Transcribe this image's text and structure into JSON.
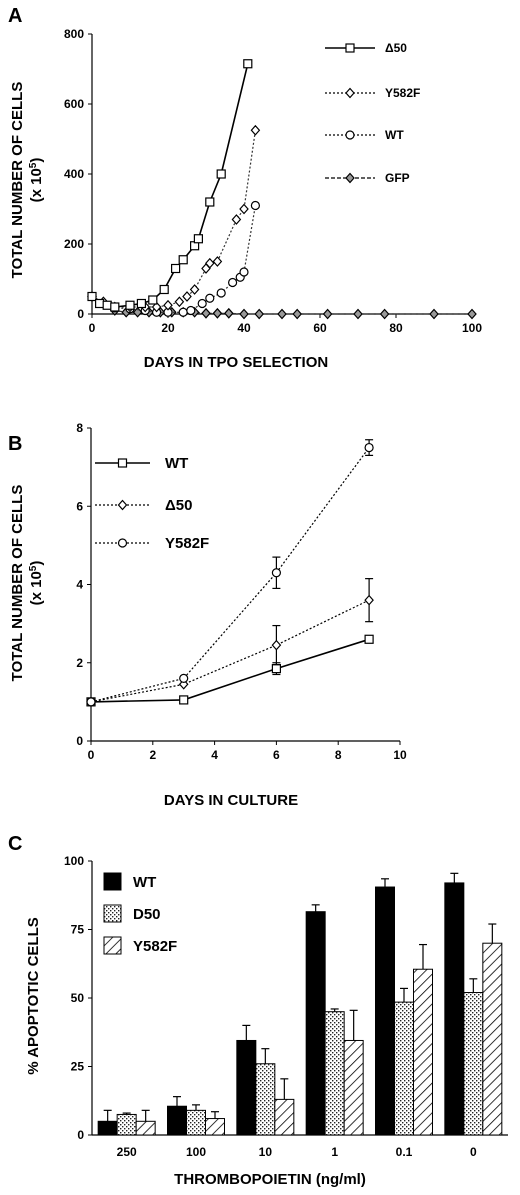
{
  "panels": [
    "A",
    "B",
    "C"
  ],
  "chart_data": [
    {
      "type": "line",
      "panel": "A",
      "xlabel": "DAYS IN TPO SELECTION",
      "ylabel": "TOTAL NUMBER OF CELLS",
      "yunit": "(x 10",
      "yunit_exp": "5",
      "yunit_close": ")",
      "xlim": [
        0,
        100
      ],
      "ylim": [
        0,
        800
      ],
      "xticks": [
        0,
        20,
        40,
        60,
        80,
        100
      ],
      "yticks": [
        0,
        200,
        400,
        600,
        800
      ],
      "legend_position": "top-right",
      "series": [
        {
          "name": "Δ50",
          "marker": "square",
          "dash": "solid",
          "points": [
            [
              0,
              50
            ],
            [
              2,
              30
            ],
            [
              4,
              25
            ],
            [
              6,
              20
            ],
            [
              10,
              25
            ],
            [
              13,
              30
            ],
            [
              16,
              40
            ],
            [
              19,
              70
            ],
            [
              22,
              130
            ],
            [
              24,
              155
            ],
            [
              27,
              195
            ],
            [
              28,
              215
            ],
            [
              31,
              320
            ],
            [
              34,
              400
            ],
            [
              41,
              715
            ]
          ]
        },
        {
          "name": "Y582F",
          "marker": "diamond",
          "dash": "dotted",
          "points": [
            [
              0,
              50
            ],
            [
              3,
              35
            ],
            [
              6,
              20
            ],
            [
              10,
              20
            ],
            [
              14,
              20
            ],
            [
              17,
              20
            ],
            [
              20,
              25
            ],
            [
              23,
              35
            ],
            [
              25,
              50
            ],
            [
              27,
              70
            ],
            [
              30,
              130
            ],
            [
              31,
              145
            ],
            [
              33,
              150
            ],
            [
              38,
              270
            ],
            [
              40,
              300
            ],
            [
              43,
              525
            ]
          ]
        },
        {
          "name": "WT",
          "marker": "circle",
          "dash": "dotted",
          "points": [
            [
              0,
              50
            ],
            [
              3,
              30
            ],
            [
              6,
              18
            ],
            [
              10,
              15
            ],
            [
              14,
              10
            ],
            [
              17,
              5
            ],
            [
              20,
              5
            ],
            [
              24,
              5
            ],
            [
              26,
              10
            ],
            [
              29,
              30
            ],
            [
              31,
              45
            ],
            [
              34,
              60
            ],
            [
              37,
              90
            ],
            [
              39,
              105
            ],
            [
              40,
              120
            ],
            [
              43,
              310
            ]
          ]
        },
        {
          "name": "GFP",
          "marker": "diamond-filled",
          "dash": "dashed",
          "points": [
            [
              0,
              50
            ],
            [
              3,
              30
            ],
            [
              6,
              10
            ],
            [
              9,
              5
            ],
            [
              12,
              5
            ],
            [
              15,
              5
            ],
            [
              18,
              5
            ],
            [
              21,
              5
            ],
            [
              24,
              5
            ],
            [
              27,
              5
            ],
            [
              30,
              2
            ],
            [
              33,
              2
            ],
            [
              36,
              2
            ],
            [
              40,
              0
            ],
            [
              44,
              0
            ],
            [
              50,
              0
            ],
            [
              54,
              0
            ],
            [
              62,
              0
            ],
            [
              70,
              0
            ],
            [
              77,
              0
            ],
            [
              90,
              0
            ],
            [
              100,
              0
            ]
          ]
        }
      ]
    },
    {
      "type": "line",
      "panel": "B",
      "xlabel": "DAYS IN CULTURE",
      "ylabel": "TOTAL NUMBER OF CELLS",
      "yunit": "(x 10",
      "yunit_exp": "5",
      "yunit_close": ")",
      "xlim": [
        0,
        10
      ],
      "ylim": [
        0,
        8
      ],
      "xticks": [
        0,
        2,
        4,
        6,
        8,
        10
      ],
      "yticks": [
        0,
        2,
        4,
        6,
        8
      ],
      "legend_position": "top-left",
      "series": [
        {
          "name": "WT",
          "marker": "square",
          "dash": "solid",
          "x": [
            0,
            3,
            6,
            9
          ],
          "y": [
            1.0,
            1.05,
            1.85,
            2.6
          ],
          "err": [
            0,
            0.05,
            0.15,
            0.05
          ]
        },
        {
          "name": "Δ50",
          "marker": "diamond",
          "dash": "dotted",
          "x": [
            0,
            3,
            6,
            9
          ],
          "y": [
            1.0,
            1.45,
            2.45,
            3.6
          ],
          "err": [
            0,
            0.05,
            0.5,
            0.55
          ]
        },
        {
          "name": "Y582F",
          "marker": "circle",
          "dash": "dotted",
          "x": [
            0,
            3,
            6,
            9
          ],
          "y": [
            1.0,
            1.6,
            4.3,
            7.5
          ],
          "err": [
            0,
            0.05,
            0.4,
            0.2
          ]
        }
      ]
    },
    {
      "type": "bar",
      "panel": "C",
      "xlabel": "THROMBOPOIETIN  (ng/ml)",
      "ylabel": "% APOPTOTIC CELLS",
      "categories": [
        "250",
        "100",
        "10",
        "1",
        "0.1",
        "0"
      ],
      "ylim": [
        0,
        100
      ],
      "yticks": [
        0,
        25,
        50,
        75,
        100
      ],
      "legend_position": "top-left",
      "series": [
        {
          "name": "WT",
          "fill": "solid-black",
          "values": [
            5,
            10.5,
            34.5,
            81.5,
            90.5,
            92
          ],
          "err": [
            4,
            3.5,
            5.5,
            2.5,
            3,
            3.5
          ]
        },
        {
          "name": "D50",
          "fill": "stipple",
          "values": [
            7.5,
            9,
            26,
            45,
            48.5,
            52
          ],
          "err": [
            0.5,
            2,
            5.5,
            1,
            5,
            5
          ]
        },
        {
          "name": "Y582F",
          "fill": "hatch",
          "values": [
            5,
            6,
            13,
            34.5,
            60.5,
            70
          ],
          "err": [
            4,
            2.5,
            7.5,
            11,
            9,
            7
          ]
        }
      ]
    }
  ]
}
